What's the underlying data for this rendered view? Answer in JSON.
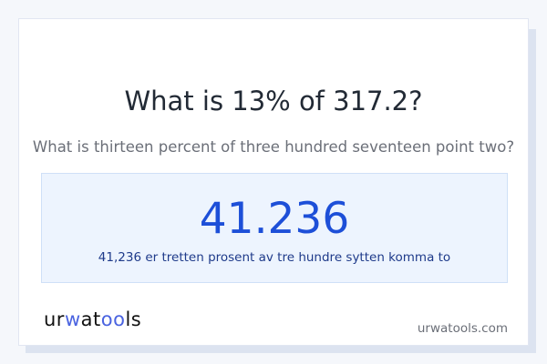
{
  "question": {
    "title": "What is 13% of 317.2?",
    "subtitle": "What is thirteen percent of three hundred seventeen point two?"
  },
  "answer": {
    "value": "41.236",
    "words": "41,236 er tretten prosent av tre hundre sytten komma to"
  },
  "footer": {
    "logo": "urwatools",
    "logo_parts": [
      "ur",
      "w",
      "at",
      "oo",
      "ls"
    ],
    "site": "urwatools.com"
  },
  "colors": {
    "accent": "#1d4fd8",
    "answer_bg": "#edf4fe",
    "logo_accent": "#4a63e0"
  }
}
